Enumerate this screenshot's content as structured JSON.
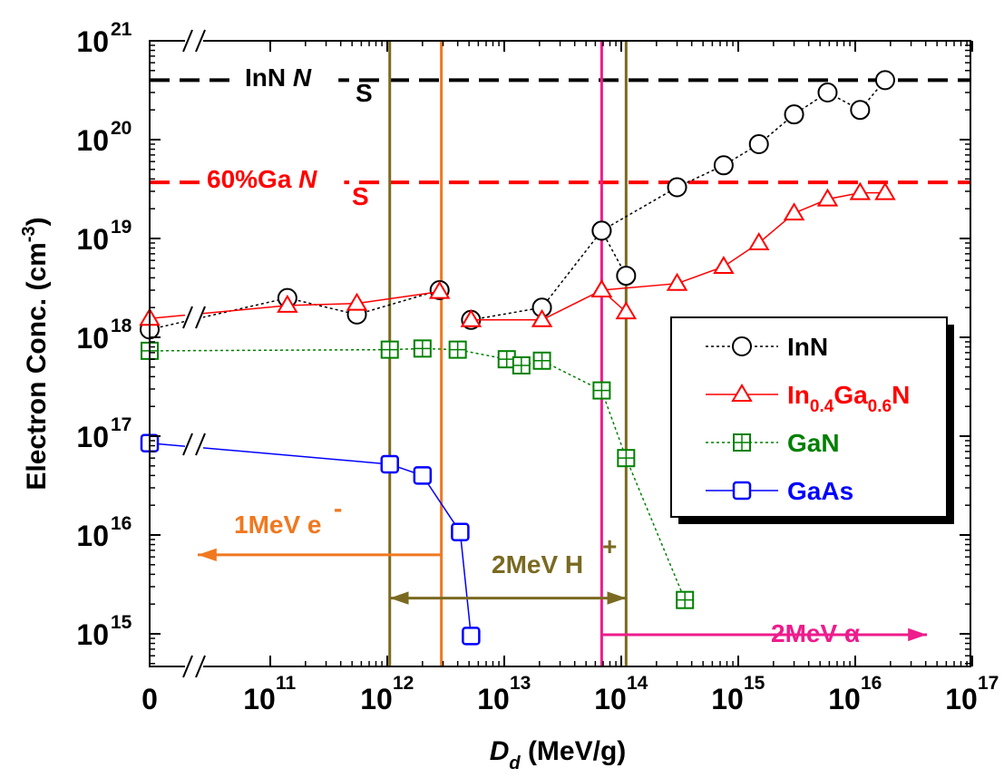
{
  "chart_data": {
    "type": "scatter",
    "xlabel": "D_d (MeV/g)",
    "xlabel_parts": {
      "main": "D",
      "sub": "d",
      "unit": " (MeV/g)"
    },
    "ylabel": "Electron Conc. (cm^-3)",
    "ylabel_parts": {
      "main": "Electron Conc. (cm",
      "sup": "-3",
      "close": ")"
    },
    "x_scale": "log with zero break",
    "y_scale": "log",
    "xlim_exponent": [
      10,
      17
    ],
    "ylim_exponent": [
      14.5,
      21
    ],
    "x_ticks": [
      {
        "label": "0",
        "exp": null
      },
      {
        "label": "10",
        "exp": "11"
      },
      {
        "label": "10",
        "exp": "12"
      },
      {
        "label": "10",
        "exp": "13"
      },
      {
        "label": "10",
        "exp": "14"
      },
      {
        "label": "10",
        "exp": "15"
      },
      {
        "label": "10",
        "exp": "16"
      },
      {
        "label": "10",
        "exp": "17"
      }
    ],
    "y_ticks": [
      {
        "label": "10",
        "exp": "15"
      },
      {
        "label": "10",
        "exp": "16"
      },
      {
        "label": "10",
        "exp": "17"
      },
      {
        "label": "10",
        "exp": "18"
      },
      {
        "label": "10",
        "exp": "19"
      },
      {
        "label": "10",
        "exp": "20"
      },
      {
        "label": "10",
        "exp": "21"
      }
    ],
    "series": [
      {
        "name": "InN",
        "color": "#000000",
        "marker": "circle",
        "line_style": "dotted",
        "segments": [
          [
            [
              0,
              1.2e+18
            ],
            [
              140000000000.0,
              2.5e+18
            ],
            [
              550000000000.0,
              1.7e+18
            ],
            [
              2800000000000.0,
              3e+18
            ]
          ],
          [
            [
              5200000000000.0,
              1.5e+18
            ],
            [
              21000000000000.0,
              2e+18
            ],
            [
              68000000000000.0,
              1.2e+19
            ],
            [
              110000000000000.0,
              4.2e+18
            ]
          ],
          [
            [
              68000000000000.0,
              1.2e+19
            ],
            [
              300000000000000.0,
              3.3e+19
            ],
            [
              750000000000000.0,
              5.5e+19
            ],
            [
              1500000000000000.0,
              9e+19
            ],
            [
              3000000000000000.0,
              1.8e+20
            ],
            [
              5800000000000000.0,
              3e+20
            ],
            [
              1.1e+16,
              2e+20
            ],
            [
              1.8e+16,
              4e+20
            ]
          ]
        ]
      },
      {
        "name": "In0.4Ga0.6N",
        "legend_parts": [
          "In",
          "0.4",
          "Ga",
          "0.6",
          "N"
        ],
        "color": "#ff0000",
        "marker": "triangle",
        "line_style": "solid",
        "segments": [
          [
            [
              0,
              1.55e+18
            ],
            [
              140000000000.0,
              2.1e+18
            ],
            [
              550000000000.0,
              2.2e+18
            ],
            [
              2800000000000.0,
              2.9e+18
            ]
          ],
          [
            [
              5200000000000.0,
              1.5e+18
            ],
            [
              21000000000000.0,
              1.5e+18
            ],
            [
              68000000000000.0,
              3e+18
            ],
            [
              110000000000000.0,
              1.8e+18
            ]
          ],
          [
            [
              68000000000000.0,
              3e+18
            ],
            [
              300000000000000.0,
              3.5e+18
            ],
            [
              750000000000000.0,
              5.2e+18
            ],
            [
              1500000000000000.0,
              9e+18
            ],
            [
              3000000000000000.0,
              1.8e+19
            ],
            [
              5800000000000000.0,
              2.5e+19
            ],
            [
              1.1e+16,
              2.9e+19
            ],
            [
              1.8e+16,
              2.9e+19
            ]
          ]
        ]
      },
      {
        "name": "GaN",
        "color": "#008000",
        "marker": "square-plus",
        "line_style": "dotted",
        "segments": [
          [
            [
              0,
              7.3e+17
            ],
            [
              1050000000000.0,
              7.5e+17
            ],
            [
              2000000000000.0,
              7.7e+17
            ],
            [
              4000000000000.0,
              7.5e+17
            ],
            [
              10500000000000.0,
              6e+17
            ],
            [
              14000000000000.0,
              5.2e+17
            ],
            [
              21000000000000.0,
              5.8e+17
            ],
            [
              68000000000000.0,
              2.9e+17
            ],
            [
              110000000000000.0,
              6e+16
            ],
            [
              350000000000000.0,
              2200000000000000.0
            ]
          ]
        ]
      },
      {
        "name": "GaAs",
        "color": "#0000ff",
        "marker": "square",
        "line_style": "solid",
        "segments": [
          [
            [
              0,
              8.5e+16
            ],
            [
              1050000000000.0,
              5.2e+16
            ],
            [
              2000000000000.0,
              4e+16
            ],
            [
              4200000000000.0,
              1.07e+16
            ],
            [
              5200000000000.0,
              950000000000000.0
            ]
          ]
        ]
      }
    ],
    "hlines": [
      {
        "y": 4e+20,
        "color": "#000000",
        "label": "InN ",
        "label_italic": "N",
        "label_sub": "S"
      },
      {
        "y": 3.7e+19,
        "color": "#ff0000",
        "label": "60%Ga ",
        "label_italic": "N",
        "label_sub": "S"
      }
    ],
    "vlines": [
      {
        "x": 1050000000000.0,
        "color": "#7a6a21"
      },
      {
        "x": 2900000000000.0,
        "color": "#f07820"
      },
      {
        "x": 68000000000000.0,
        "color": "#ee1c8c"
      },
      {
        "x": 110000000000000.0,
        "color": "#7a6a21"
      }
    ],
    "ranges": [
      {
        "label": "1MeV e",
        "sup": "-",
        "color": "#f07820",
        "from": "left",
        "to": 2900000000000.0,
        "y": 6300000000000000.0
      },
      {
        "label": "2MeV H",
        "sup": "+",
        "color": "#7a6a21",
        "from": 1050000000000.0,
        "to": 110000000000000.0,
        "y": 2300000000000000.0,
        "both": true
      },
      {
        "label": "2MeV α",
        "color": "#ee1c8c",
        "from": 68000000000000.0,
        "to": "right",
        "y": 980000000000000.0
      }
    ],
    "legend_position": "right"
  }
}
